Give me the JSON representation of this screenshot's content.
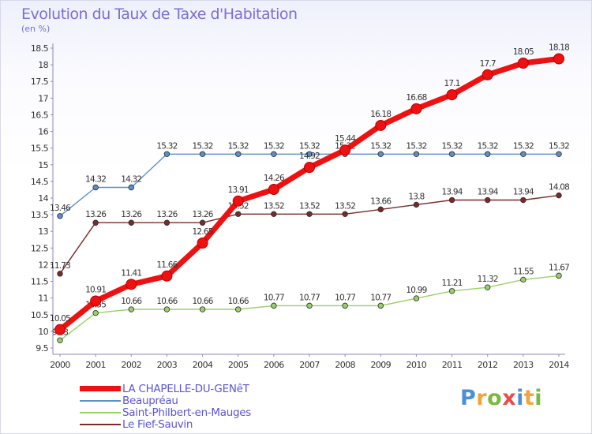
{
  "header": {
    "title": "Evolution du Taux de Taxe d'Habitation",
    "unit": "(en %)"
  },
  "logo": {
    "parts": [
      "P",
      "r",
      "o",
      "x",
      "i",
      "t",
      "i"
    ],
    "colors": [
      "#4a90d9",
      "#f2a33a",
      "#79b93f",
      "#e94b4b",
      "#4a90d9",
      "#f2a33a",
      "#79b93f"
    ]
  },
  "chart_data": {
    "type": "line",
    "title": "Evolution du Taux de Taxe d'Habitation",
    "ylabel": "(en %)",
    "xlabel": "",
    "ylim": [
      9.5,
      18.5
    ],
    "y_ticks": [
      9.5,
      10,
      10.5,
      11,
      11.5,
      12,
      12.5,
      13,
      13.5,
      14,
      14.5,
      15,
      15.5,
      16,
      16.5,
      17,
      17.5,
      18,
      18.5
    ],
    "x": [
      "2000",
      "2001",
      "2002",
      "2003",
      "2004",
      "2005",
      "2006",
      "2007",
      "2008",
      "2009",
      "2010",
      "2011",
      "2012",
      "2013",
      "2014"
    ],
    "grid": false,
    "legend": "bottom-left",
    "series": [
      {
        "name": "Beaupréau",
        "color": "#5b8fc9",
        "values": [
          13.46,
          14.32,
          14.32,
          15.32,
          15.32,
          15.32,
          15.32,
          15.32,
          15.32,
          15.32,
          15.32,
          15.32,
          15.32,
          15.32,
          15.32
        ]
      },
      {
        "name": "Le Fief-Sauvin",
        "color": "#7a2a2a",
        "values": [
          11.73,
          13.26,
          13.26,
          13.26,
          13.26,
          13.52,
          13.52,
          13.52,
          13.52,
          13.66,
          13.8,
          13.94,
          13.94,
          13.94,
          14.08
        ]
      },
      {
        "name": "Saint-Philbert-en-Mauges",
        "color": "#9ad06a",
        "values": [
          9.73,
          10.55,
          10.66,
          10.66,
          10.66,
          10.66,
          10.77,
          10.77,
          10.77,
          10.77,
          10.99,
          11.21,
          11.32,
          11.55,
          11.67
        ]
      },
      {
        "name": "LA CHAPELLE-DU-GENêT",
        "color": "#ee1111",
        "values": [
          10.05,
          10.91,
          11.41,
          11.66,
          12.65,
          13.91,
          14.26,
          14.92,
          15.44,
          16.18,
          16.68,
          17.1,
          17.7,
          18.05,
          18.18
        ]
      }
    ],
    "legend_order": [
      "LA CHAPELLE-DU-GENêT",
      "Beaupréau",
      "Saint-Philbert-en-Mauges",
      "Le Fief-Sauvin"
    ]
  }
}
